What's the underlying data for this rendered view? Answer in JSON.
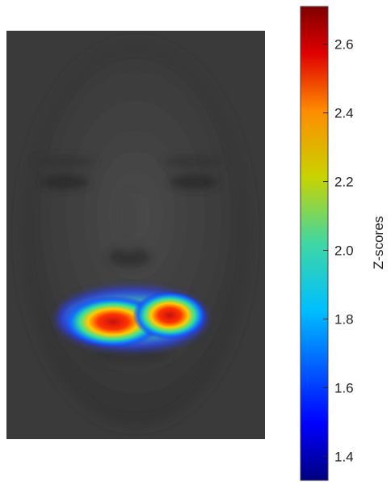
{
  "chart_data": {
    "type": "heatmap",
    "title": "",
    "background_image": "average-face-photo",
    "colormap": "jet",
    "colorbar": {
      "label": "Z-scores",
      "range": [
        1.33,
        2.71
      ],
      "ticks": [
        1.4,
        1.6,
        1.8,
        2.0,
        2.2,
        2.4,
        2.6
      ],
      "tick_labels": [
        "1.4",
        "1.6",
        "1.8",
        "2.0",
        "2.2",
        "2.4",
        "2.6"
      ]
    },
    "hotspots": [
      {
        "region": "left-mouth-corner",
        "z": 2.6
      },
      {
        "region": "right-mouth-corner",
        "z": 2.6
      }
    ],
    "grid": false
  }
}
